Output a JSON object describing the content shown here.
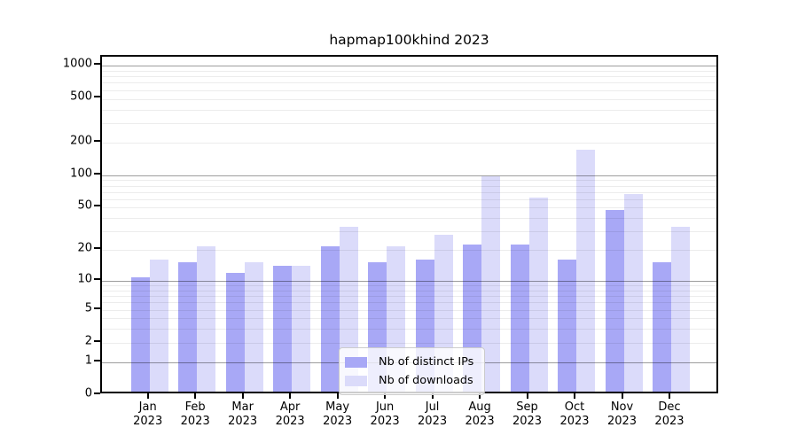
{
  "chart_data": {
    "type": "bar",
    "title": "hapmap100khind 2023",
    "categories": [
      "Jan",
      "Feb",
      "Mar",
      "Apr",
      "May",
      "Jun",
      "Jul",
      "Aug",
      "Sep",
      "Oct",
      "Nov",
      "Dec"
    ],
    "year_label": "2023",
    "series": [
      {
        "name": "Nb of distinct IPs",
        "color": "#a8a8f6",
        "values": [
          10,
          14,
          11,
          13,
          20,
          14,
          15,
          21,
          21,
          15,
          44,
          14
        ]
      },
      {
        "name": "Nb of downloads",
        "color": "#dbdbfa",
        "values": [
          15,
          20,
          14,
          13,
          31,
          20,
          26,
          90,
          58,
          160,
          62,
          31
        ]
      }
    ],
    "yscale": "log1p",
    "ylim": [
      0,
      1200
    ],
    "yticks": [
      {
        "label": "1000",
        "value": 1000
      },
      {
        "label": "500",
        "value": 500
      },
      {
        "label": "200",
        "value": 200
      },
      {
        "label": "100",
        "value": 100
      },
      {
        "label": "50",
        "value": 50
      },
      {
        "label": "20",
        "value": 20
      },
      {
        "label": "10",
        "value": 10
      },
      {
        "label": "5",
        "value": 5
      },
      {
        "label": "2",
        "value": 2
      },
      {
        "label": "1",
        "value": 1
      },
      {
        "label": "0",
        "value": 0
      }
    ],
    "gridlines_major": [
      1,
      10,
      100,
      1000
    ],
    "gridlines_minor": [
      2,
      3,
      4,
      5,
      6,
      7,
      8,
      9,
      20,
      30,
      40,
      50,
      60,
      70,
      80,
      90,
      200,
      300,
      400,
      500,
      600,
      700,
      800,
      900
    ],
    "grid": true,
    "legend_position": "lower-center"
  }
}
